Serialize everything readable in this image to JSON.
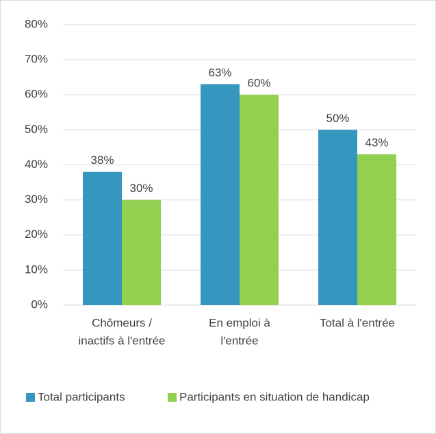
{
  "chart_data": {
    "type": "bar",
    "categories": [
      [
        "Chômeurs /",
        "inactifs à l'entrée"
      ],
      [
        "En emploi à",
        "l'entrée"
      ],
      [
        "Total à l'entrée"
      ]
    ],
    "series": [
      {
        "name": "Total participants",
        "color": "#3596bf",
        "values": [
          38,
          63,
          50
        ],
        "value_labels": [
          "38%",
          "63%",
          "50%"
        ]
      },
      {
        "name": "Participants en situation de handicap",
        "color": "#92d050",
        "values": [
          30,
          60,
          43
        ],
        "value_labels": [
          "30%",
          "60%",
          "43%"
        ]
      }
    ],
    "ylim": [
      0,
      80
    ],
    "yticks": [
      {
        "value": 0,
        "label": "0%"
      },
      {
        "value": 10,
        "label": "10%"
      },
      {
        "value": 20,
        "label": "20%"
      },
      {
        "value": 30,
        "label": "30%"
      },
      {
        "value": 40,
        "label": "40%"
      },
      {
        "value": 50,
        "label": "50%"
      },
      {
        "value": 60,
        "label": "60%"
      },
      {
        "value": 70,
        "label": "70%"
      },
      {
        "value": 80,
        "label": "80%"
      }
    ],
    "grid": true,
    "legend": "bottom"
  }
}
